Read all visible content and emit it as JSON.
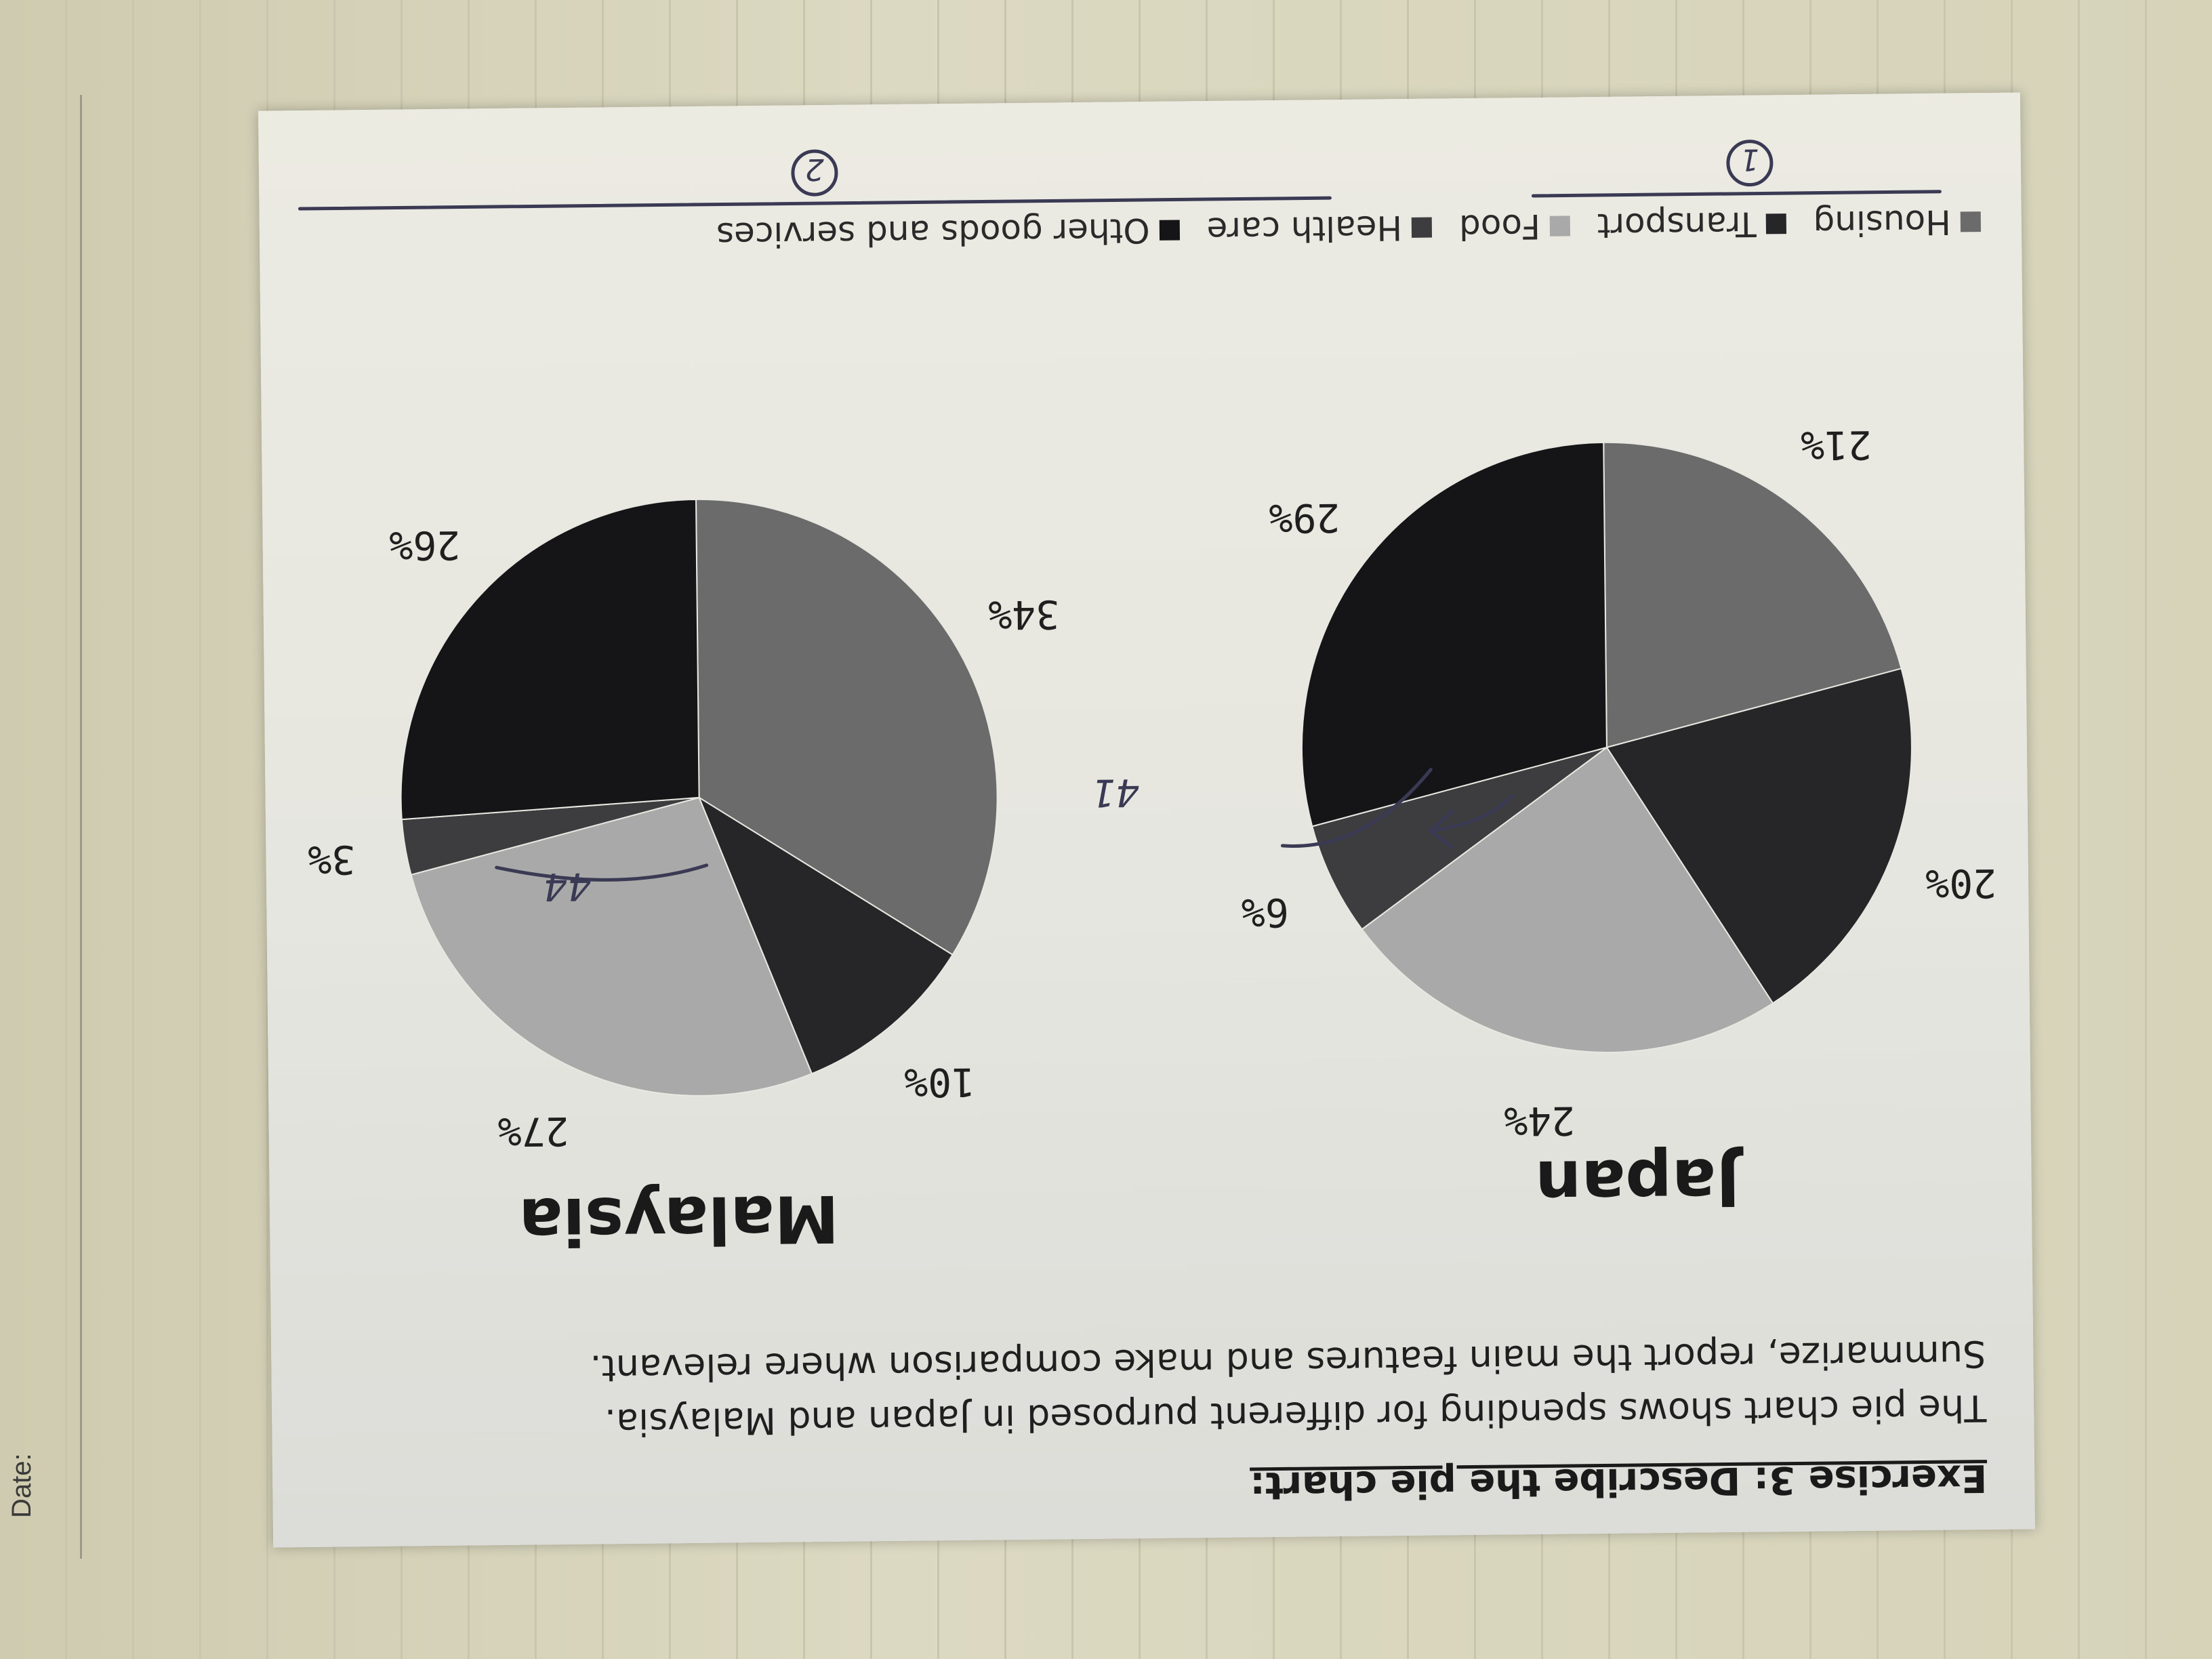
{
  "notebook": {
    "date_label": "Date:"
  },
  "worksheet": {
    "exercise_title": "Exercise 3: Describe the pie chart:",
    "instruction_lines": [
      "The pie chart shows spending for different purposed in Japan and Malaysia.",
      "Summarize, report the main features and make comparison where relevant."
    ],
    "legend": [
      {
        "label": "Housing",
        "color": "#6b6b6b"
      },
      {
        "label": "Transport",
        "color": "#262628"
      },
      {
        "label": "Food",
        "color": "#a9a9a9"
      },
      {
        "label": "Health care",
        "color": "#3d3d40"
      },
      {
        "label": "Other goods and services",
        "color": "#151518"
      }
    ],
    "annotations": {
      "japan_note": "41",
      "malaysia_note": "44",
      "circled_one": "1",
      "circled_two": "2"
    }
  },
  "chart_data": [
    {
      "type": "pie",
      "title": "Japan",
      "categories": [
        "Housing",
        "Transport",
        "Food",
        "Health care",
        "Other goods and services"
      ],
      "values": [
        21,
        20,
        24,
        6,
        29
      ],
      "value_labels": [
        "21%",
        "20%",
        "24%",
        "6%",
        "29%"
      ]
    },
    {
      "type": "pie",
      "title": "Malaysia",
      "categories": [
        "Housing",
        "Transport",
        "Food",
        "Health care",
        "Other goods and services"
      ],
      "values": [
        34,
        10,
        27,
        3,
        26
      ],
      "value_labels": [
        "34%",
        "10%",
        "27%",
        "3%",
        "26%"
      ]
    }
  ]
}
